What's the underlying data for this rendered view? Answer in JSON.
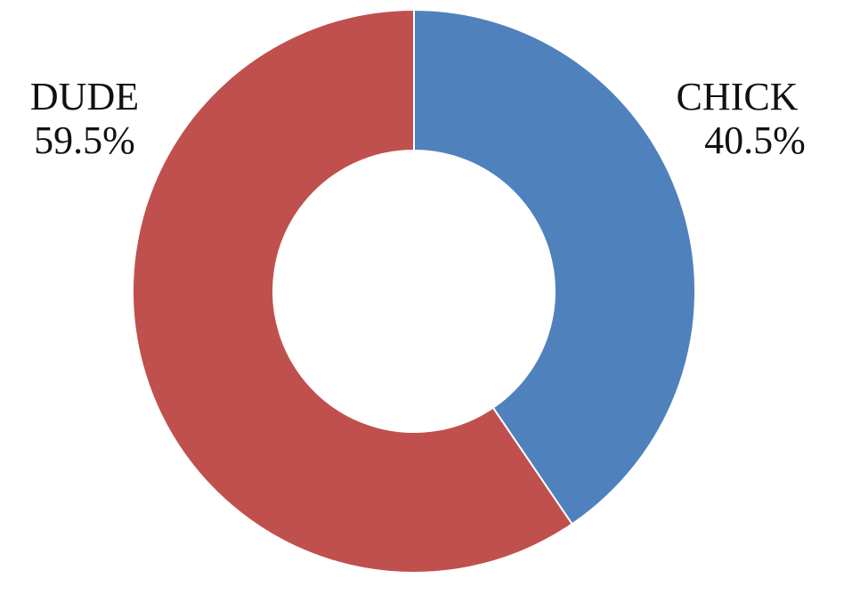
{
  "chart_data": {
    "type": "pie",
    "variant": "donut",
    "slices": [
      {
        "label": "CHICK",
        "value": 40.5,
        "value_label": "40.5%",
        "color": "#4F81BD"
      },
      {
        "label": "DUDE",
        "value": 59.5,
        "value_label": "59.5%",
        "color": "#C0504D"
      }
    ],
    "start_angle": "12 o'clock",
    "direction": "clockwise",
    "legend": "none",
    "data_labels": "outside"
  }
}
